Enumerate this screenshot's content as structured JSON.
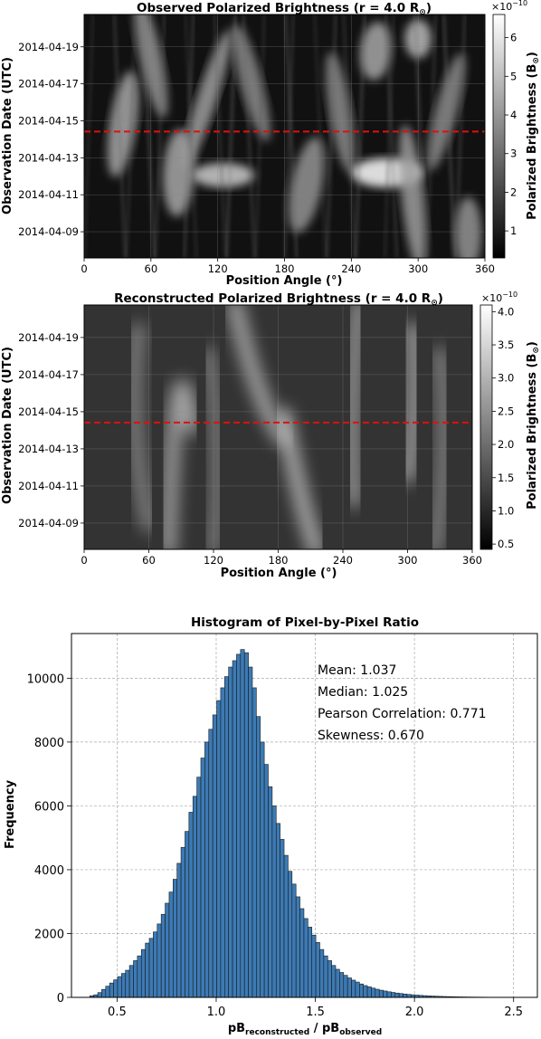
{
  "chart_data": [
    {
      "type": "heatmap",
      "title": "Observed Polarized Brightness (r = 4.0 R",
      "title_sub": "⊙",
      "title_close": ")",
      "xlabel": "Position Angle (°)",
      "ylabel": "Observation Date (UTC)",
      "xlim": [
        0,
        360
      ],
      "x_ticks": [
        "0",
        "60",
        "120",
        "180",
        "240",
        "300",
        "360"
      ],
      "y_ticks": [
        "2014-04-09",
        "2014-04-11",
        "2014-04-13",
        "2014-04-15",
        "2014-04-17",
        "2014-04-19"
      ],
      "ylim": [
        "2014-04-07T14:00",
        "2014-04-20T18:00"
      ],
      "reference_line": {
        "date": "2014-04-14T10:00",
        "color": "#e01010",
        "style": "dashed"
      },
      "colormap": "gray",
      "grid": true,
      "colorbar": {
        "label": "Polarized Brightness (B",
        "label_sub": "⊙",
        "label_close": ")",
        "exponent": "×10",
        "exponent_power": "−10",
        "ticks": [
          "1",
          "2",
          "3",
          "4",
          "5",
          "6"
        ],
        "range": [
          0.3,
          6.6
        ]
      },
      "features": [
        {
          "x": 35,
          "y": 0.55,
          "w": 12,
          "h": 0.22,
          "v": 0.55,
          "tilt": 0.3
        },
        {
          "x": 60,
          "y": 0.82,
          "w": 10,
          "h": 0.25,
          "v": 0.45,
          "tilt": -0.4
        },
        {
          "x": 85,
          "y": 0.35,
          "w": 14,
          "h": 0.18,
          "v": 0.55,
          "tilt": 0.1
        },
        {
          "x": 110,
          "y": 0.65,
          "w": 9,
          "h": 0.3,
          "v": 0.5,
          "tilt": 0.6
        },
        {
          "x": 125,
          "y": 0.34,
          "w": 28,
          "h": 0.05,
          "v": 0.75,
          "tilt": 0.0
        },
        {
          "x": 150,
          "y": 0.72,
          "w": 10,
          "h": 0.25,
          "v": 0.4,
          "tilt": -0.5
        },
        {
          "x": 200,
          "y": 0.3,
          "w": 14,
          "h": 0.2,
          "v": 0.45,
          "tilt": 0.4
        },
        {
          "x": 230,
          "y": 0.6,
          "w": 10,
          "h": 0.25,
          "v": 0.4,
          "tilt": -0.3
        },
        {
          "x": 272,
          "y": 0.35,
          "w": 32,
          "h": 0.06,
          "v": 1.0,
          "tilt": 0.0
        },
        {
          "x": 262,
          "y": 0.85,
          "w": 14,
          "h": 0.12,
          "v": 0.55,
          "tilt": 0.2
        },
        {
          "x": 295,
          "y": 0.25,
          "w": 10,
          "h": 0.3,
          "v": 0.5,
          "tilt": -0.2
        },
        {
          "x": 300,
          "y": 0.9,
          "w": 12,
          "h": 0.08,
          "v": 0.65,
          "tilt": 0.0
        },
        {
          "x": 325,
          "y": 0.6,
          "w": 10,
          "h": 0.25,
          "v": 0.4,
          "tilt": 0.5
        },
        {
          "x": 345,
          "y": 0.1,
          "w": 12,
          "h": 0.15,
          "v": 0.45,
          "tilt": 0.0
        }
      ]
    },
    {
      "type": "heatmap",
      "title": "Reconstructed Polarized Brightness (r = 4.0 R",
      "title_sub": "⊙",
      "title_close": ")",
      "xlabel": "Position Angle (°)",
      "ylabel": "Observation Date (UTC)",
      "xlim": [
        0,
        360
      ],
      "x_ticks": [
        "0",
        "60",
        "120",
        "180",
        "240",
        "300",
        "360"
      ],
      "y_ticks": [
        "2014-04-09",
        "2014-04-11",
        "2014-04-13",
        "2014-04-15",
        "2014-04-17",
        "2014-04-19"
      ],
      "ylim": [
        "2014-04-07T14:00",
        "2014-04-20T18:00"
      ],
      "reference_line": {
        "date": "2014-04-14T10:00",
        "color": "#e01010",
        "style": "dashed"
      },
      "colormap": "gray",
      "grid": true,
      "colorbar": {
        "label": "Polarized Brightness (B",
        "label_sub": "⊙",
        "label_close": ")",
        "exponent": "×10",
        "exponent_power": "−10",
        "ticks": [
          "0.5",
          "1.0",
          "1.5",
          "2.0",
          "2.5",
          "3.0",
          "3.5",
          "4.0"
        ],
        "range": [
          0.42,
          4.1
        ]
      },
      "features": [
        {
          "x0": 100,
          "y0": 0.5,
          "x1": 85,
          "y1": 1.0,
          "x2": 78,
          "y2": 0.0,
          "v": 0.55
        },
        {
          "x0": 140,
          "y0": 1.0,
          "x1": 160,
          "y1": 0.6,
          "x2": 185,
          "y2": 0.45,
          "v": 0.6
        },
        {
          "x0": 185,
          "y0": 0.55,
          "x1": 200,
          "y1": 0.2,
          "x2": 215,
          "y2": 0.0,
          "v": 0.65
        },
        {
          "x0": 255,
          "y0": 1.0,
          "x1": 245,
          "y1": 0.6,
          "x2": 250,
          "y2": 0.2,
          "v": 0.5
        },
        {
          "x0": 305,
          "y0": 0.9,
          "x1": 310,
          "y1": 0.6,
          "x2": 300,
          "y2": 0.3,
          "v": 0.55
        },
        {
          "x0": 50,
          "y0": 0.9,
          "x1": 40,
          "y1": 0.5,
          "x2": 60,
          "y2": 0.1,
          "v": 0.35
        },
        {
          "x0": 330,
          "y0": 0.8,
          "x1": 340,
          "y1": 0.4,
          "x2": 325,
          "y2": 0.0,
          "v": 0.35
        },
        {
          "x0": 120,
          "y0": 0.0,
          "x1": 130,
          "y1": 0.4,
          "x2": 115,
          "y2": 0.8,
          "v": 0.3
        }
      ]
    },
    {
      "type": "bar",
      "title": "Histogram of Pixel-by-Pixel Ratio",
      "xlabel_main": "pB",
      "xlabel_sub1": "reconstructed",
      "xlabel_mid": " / pB",
      "xlabel_sub2": "observed",
      "ylabel": "Frequency",
      "xlim": [
        0.27,
        2.62
      ],
      "ylim": [
        0,
        11400
      ],
      "x_ticks": [
        "0.5",
        "1.0",
        "1.5",
        "2.0",
        "2.5"
      ],
      "y_ticks": [
        "0",
        "2000",
        "4000",
        "6000",
        "8000",
        "10000"
      ],
      "grid": true,
      "bar_color": "#3c7ab4",
      "bin_start": 0.3625,
      "bin_width": 0.02,
      "values": [
        50,
        80,
        150,
        250,
        350,
        450,
        550,
        650,
        750,
        850,
        1000,
        1150,
        1300,
        1500,
        1700,
        1850,
        2050,
        2300,
        2600,
        2950,
        3300,
        3700,
        4200,
        4700,
        5200,
        5800,
        6300,
        6900,
        7500,
        8000,
        8400,
        8850,
        9300,
        9700,
        10050,
        10350,
        10550,
        10750,
        10900,
        10800,
        10350,
        9700,
        8800,
        8000,
        7300,
        6600,
        6000,
        5450,
        4950,
        4450,
        3950,
        3550,
        3150,
        2780,
        2470,
        2200,
        1950,
        1720,
        1500,
        1300,
        1150,
        1000,
        880,
        780,
        690,
        610,
        540,
        480,
        420,
        370,
        330,
        290,
        255,
        225,
        200,
        175,
        155,
        135,
        120,
        105,
        92,
        81,
        71,
        62,
        54,
        47,
        41,
        36,
        31,
        27,
        23,
        20,
        17,
        15,
        13,
        11,
        10,
        9,
        8,
        7,
        6,
        5,
        4,
        4,
        3,
        3,
        2,
        2
      ],
      "annotations": [
        "Mean: 1.037",
        "Median: 1.025",
        "Pearson Correlation: 0.771",
        "Skewness: 0.670"
      ]
    }
  ]
}
